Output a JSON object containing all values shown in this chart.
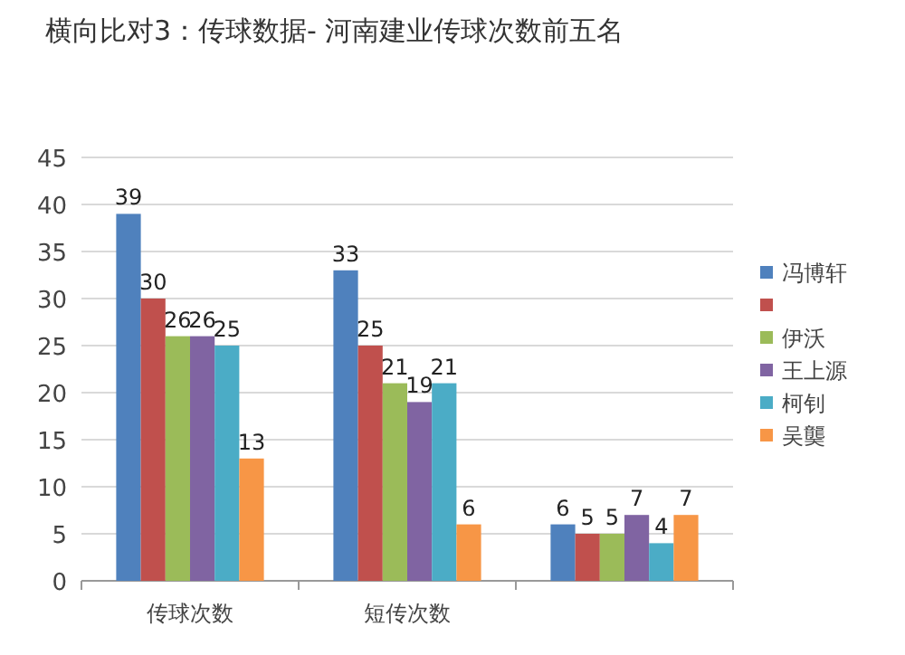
{
  "chart_data": {
    "type": "bar",
    "title": "横向比对3：传球数据- 河南建业传球次数前五名",
    "categories": [
      "传球次数",
      "短传次数",
      null
    ],
    "series": [
      {
        "name": "冯博轩",
        "color": "#4f81bd",
        "values": [
          39,
          33,
          6
        ]
      },
      {
        "color": "#c0504d",
        "values": [
          30,
          25,
          5
        ]
      },
      {
        "name": "伊沃",
        "color": "#9bbb59",
        "values": [
          26,
          21,
          5
        ]
      },
      {
        "name": "王上源",
        "color": "#8064a2",
        "values": [
          26,
          19,
          7
        ]
      },
      {
        "name": "柯钊",
        "color": "#4bacc6",
        "values": [
          25,
          21,
          4
        ]
      },
      {
        "name": "吴龑",
        "color": "#f79646",
        "values": [
          13,
          6,
          7
        ]
      }
    ],
    "ylim": [
      0,
      45
    ],
    "yticks": [
      0,
      5,
      10,
      15,
      20,
      25,
      30,
      35,
      40,
      45
    ],
    "grid": "y",
    "legend": "right",
    "data_labels": true
  }
}
